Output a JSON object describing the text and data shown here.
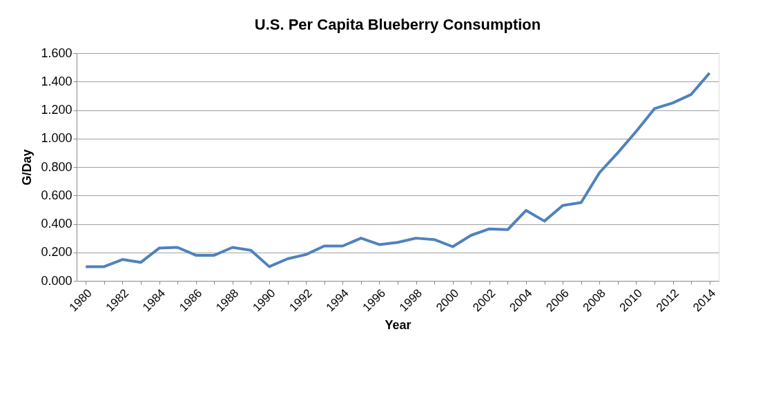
{
  "chart_data": {
    "type": "line",
    "title": "U.S. Per Capita Blueberry Consumption",
    "xlabel": "Year",
    "ylabel": "G/Day",
    "categories": [
      "1980",
      null,
      "1982",
      null,
      "1984",
      null,
      "1986",
      null,
      "1988",
      null,
      "1990",
      null,
      "1992",
      null,
      "1994",
      null,
      "1996",
      null,
      "1998",
      null,
      "2000",
      null,
      "2002",
      null,
      "2004",
      null,
      "2006",
      null,
      "2008",
      null,
      "2010",
      null,
      "2012",
      null,
      "2014"
    ],
    "series": [
      {
        "color": "#4f81bd",
        "values": [
          0.1,
          0.1,
          0.15,
          0.13,
          0.23,
          0.235,
          0.18,
          0.18,
          0.235,
          0.215,
          0.1,
          0.155,
          0.185,
          0.245,
          0.245,
          0.3,
          0.255,
          0.27,
          0.3,
          0.29,
          0.24,
          0.32,
          0.365,
          0.36,
          0.495,
          0.42,
          0.53,
          0.55,
          0.76,
          0.9,
          1.05,
          1.21,
          1.25,
          1.31,
          1.46
        ]
      }
    ],
    "ylim": [
      0,
      1.6
    ],
    "yticks": [
      {
        "value": 0,
        "label": "0.000"
      },
      {
        "value": 0.2,
        "label": "0.200"
      },
      {
        "value": 0.4,
        "label": "0.400"
      },
      {
        "value": 0.6,
        "label": "0.600"
      },
      {
        "value": 0.8,
        "label": "0.800"
      },
      {
        "value": 1.0,
        "label": "1.000"
      },
      {
        "value": 1.2,
        "label": "1.200"
      },
      {
        "value": 1.4,
        "label": "1.400"
      },
      {
        "value": 1.6,
        "label": "1.600"
      }
    ],
    "grid": "y",
    "legend": false,
    "marker": "none",
    "line_style": "solid"
  }
}
